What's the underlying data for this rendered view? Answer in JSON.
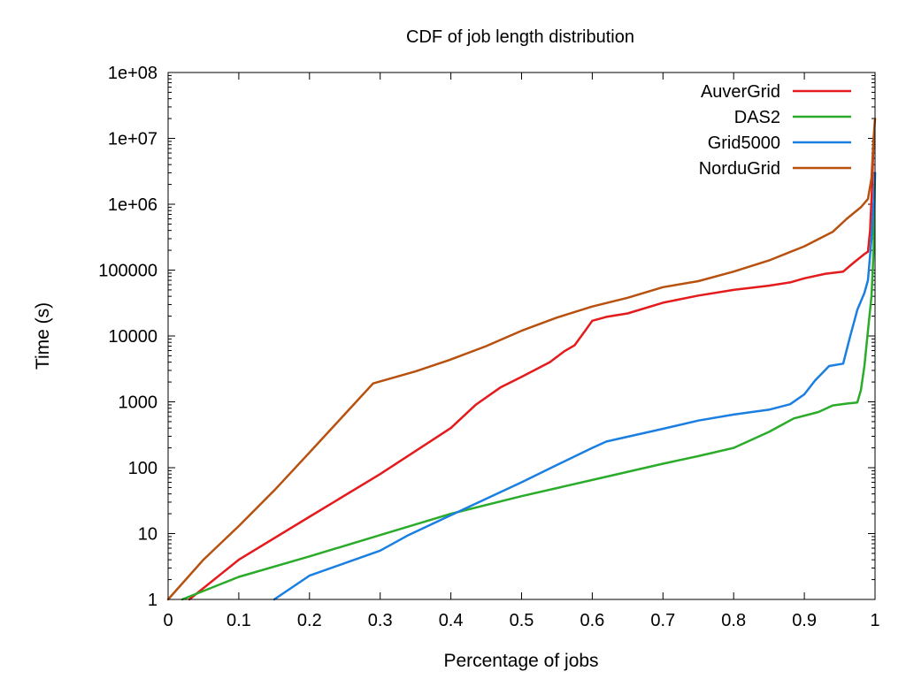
{
  "chart_data": {
    "type": "line",
    "title": "CDF of job length distribution",
    "xlabel": "Percentage of jobs",
    "ylabel": "Time (s)",
    "xlim": [
      0,
      1
    ],
    "ylim": [
      1,
      100000000
    ],
    "yscale": "log",
    "grid": false,
    "legend_position": "top-right",
    "x_ticks": [
      0,
      0.1,
      0.2,
      0.3,
      0.4,
      0.5,
      0.6,
      0.7,
      0.8,
      0.9,
      1
    ],
    "x_tick_labels": [
      "0",
      "0.1",
      "0.2",
      "0.3",
      "0.4",
      "0.5",
      "0.6",
      "0.7",
      "0.8",
      "0.9",
      "1"
    ],
    "y_ticks": [
      1,
      10,
      100,
      1000,
      10000,
      100000,
      1000000,
      10000000,
      100000000
    ],
    "y_tick_labels": [
      "1",
      "10",
      "100",
      "1000",
      "10000",
      "100000",
      "1e+06",
      "1e+07",
      "1e+08"
    ],
    "series": [
      {
        "name": "AuverGrid",
        "color": "#e41a1c",
        "points": [
          [
            0.03,
            1
          ],
          [
            0.1,
            4
          ],
          [
            0.2,
            18
          ],
          [
            0.3,
            80
          ],
          [
            0.4,
            400
          ],
          [
            0.435,
            900
          ],
          [
            0.47,
            1650
          ],
          [
            0.5,
            2400
          ],
          [
            0.54,
            4000
          ],
          [
            0.56,
            5800
          ],
          [
            0.575,
            7200
          ],
          [
            0.59,
            12000
          ],
          [
            0.6,
            17000
          ],
          [
            0.62,
            19500
          ],
          [
            0.65,
            22000
          ],
          [
            0.7,
            32000
          ],
          [
            0.75,
            41000
          ],
          [
            0.8,
            50000
          ],
          [
            0.85,
            58000
          ],
          [
            0.88,
            65000
          ],
          [
            0.9,
            75000
          ],
          [
            0.93,
            88000
          ],
          [
            0.955,
            95000
          ],
          [
            0.97,
            130000
          ],
          [
            0.985,
            175000
          ],
          [
            0.99,
            190000
          ],
          [
            0.993,
            400000
          ],
          [
            0.996,
            2000000
          ],
          [
            0.998,
            10000000
          ]
        ]
      },
      {
        "name": "DAS2",
        "color": "#2aac2a",
        "points": [
          [
            0.02,
            1
          ],
          [
            0.1,
            2.2
          ],
          [
            0.2,
            4.5
          ],
          [
            0.3,
            9.5
          ],
          [
            0.4,
            20
          ],
          [
            0.5,
            37
          ],
          [
            0.6,
            65
          ],
          [
            0.7,
            115
          ],
          [
            0.75,
            150
          ],
          [
            0.8,
            200
          ],
          [
            0.85,
            350
          ],
          [
            0.885,
            560
          ],
          [
            0.92,
            700
          ],
          [
            0.94,
            880
          ],
          [
            0.96,
            940
          ],
          [
            0.975,
            980
          ],
          [
            0.98,
            1500
          ],
          [
            0.985,
            3500
          ],
          [
            0.99,
            12000
          ],
          [
            0.995,
            40000
          ],
          [
            0.998,
            200000
          ],
          [
            1,
            3000000
          ]
        ]
      },
      {
        "name": "Grid5000",
        "color": "#1a7fe0",
        "points": [
          [
            0.15,
            1
          ],
          [
            0.2,
            2.3
          ],
          [
            0.3,
            5.5
          ],
          [
            0.34,
            9.5
          ],
          [
            0.4,
            19
          ],
          [
            0.5,
            60
          ],
          [
            0.55,
            110
          ],
          [
            0.6,
            200
          ],
          [
            0.62,
            250
          ],
          [
            0.7,
            390
          ],
          [
            0.75,
            520
          ],
          [
            0.8,
            640
          ],
          [
            0.85,
            760
          ],
          [
            0.88,
            920
          ],
          [
            0.9,
            1300
          ],
          [
            0.915,
            2100
          ],
          [
            0.935,
            3500
          ],
          [
            0.955,
            3800
          ],
          [
            0.965,
            10000
          ],
          [
            0.975,
            25000
          ],
          [
            0.985,
            45000
          ],
          [
            0.99,
            70000
          ],
          [
            0.995,
            300000
          ],
          [
            0.998,
            1000000
          ],
          [
            1,
            3000000
          ]
        ]
      },
      {
        "name": "NorduGrid",
        "color": "#b8510f",
        "points": [
          [
            0,
            1
          ],
          [
            0.05,
            4
          ],
          [
            0.1,
            13
          ],
          [
            0.15,
            45
          ],
          [
            0.2,
            170
          ],
          [
            0.25,
            650
          ],
          [
            0.29,
            1900
          ],
          [
            0.35,
            2900
          ],
          [
            0.4,
            4400
          ],
          [
            0.45,
            7000
          ],
          [
            0.5,
            12000
          ],
          [
            0.55,
            19000
          ],
          [
            0.6,
            28000
          ],
          [
            0.65,
            38000
          ],
          [
            0.7,
            55000
          ],
          [
            0.75,
            68000
          ],
          [
            0.8,
            95000
          ],
          [
            0.85,
            140000
          ],
          [
            0.9,
            230000
          ],
          [
            0.94,
            380000
          ],
          [
            0.96,
            600000
          ],
          [
            0.98,
            900000
          ],
          [
            0.99,
            1200000
          ],
          [
            0.995,
            2500000
          ],
          [
            0.998,
            10000000
          ],
          [
            1,
            20000000
          ]
        ]
      }
    ]
  }
}
